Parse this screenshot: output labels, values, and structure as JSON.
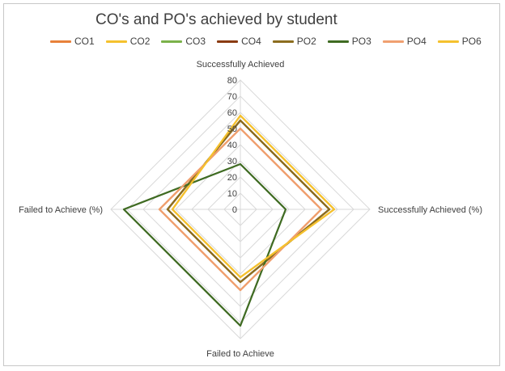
{
  "chart_data": {
    "type": "radar",
    "title": "CO's and PO's achieved by student",
    "axes": [
      "Successfully Achieved",
      "Successfully Achieved (%)",
      "Failed to Achieve",
      "Failed to Achieve (%)"
    ],
    "radial_ticks": [
      "0",
      "10",
      "20",
      "30",
      "40",
      "50",
      "60",
      "70",
      "80"
    ],
    "rlim": [
      0,
      80
    ],
    "legend_position": "top",
    "series": [
      {
        "name": "CO1",
        "color": "#e8813a",
        "values": [
          50,
          50,
          50,
          50
        ]
      },
      {
        "name": "CO2",
        "color": "#f5c12e",
        "values": [
          58,
          58,
          42,
          42
        ]
      },
      {
        "name": "CO3",
        "color": "#7bb24a",
        "values": [
          55,
          55,
          45,
          45
        ]
      },
      {
        "name": "CO4",
        "color": "#8a3b12",
        "values": [
          55,
          55,
          45,
          45
        ]
      },
      {
        "name": "PO2",
        "color": "#8c6d1f",
        "values": [
          55,
          55,
          45,
          45
        ]
      },
      {
        "name": "PO3",
        "color": "#3f6b22",
        "values": [
          28,
          28,
          72,
          72
        ]
      },
      {
        "name": "PO4",
        "color": "#f0a070",
        "values": [
          50,
          50,
          50,
          50
        ]
      },
      {
        "name": "PO6",
        "color": "#f5c12e",
        "values": [
          58,
          58,
          42,
          42
        ]
      }
    ]
  }
}
